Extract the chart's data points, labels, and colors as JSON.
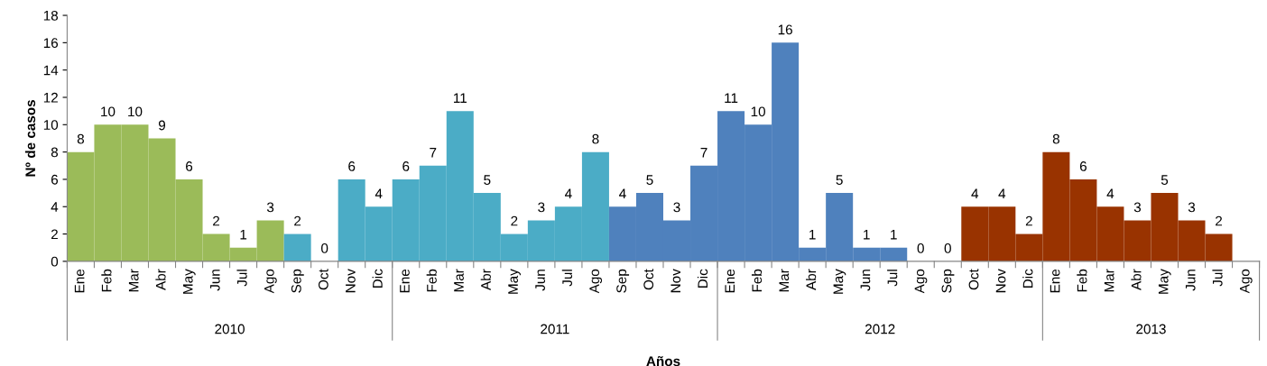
{
  "chart_data": {
    "type": "bar",
    "xlabel": "Años",
    "ylabel": "Nº de casos",
    "categories": [
      "Ene",
      "Feb",
      "Mar",
      "Abr",
      "May",
      "Jun",
      "Jul",
      "Ago",
      "Sep",
      "Oct",
      "Nov",
      "Dic",
      "Ene",
      "Feb",
      "Mar",
      "Abr",
      "May",
      "Jun",
      "Jul",
      "Ago",
      "Sep",
      "Oct",
      "Nov",
      "Dic",
      "Ene",
      "Feb",
      "Mar",
      "Abr",
      "May",
      "Jun",
      "Jul",
      "Ago",
      "Sep",
      "Oct",
      "Nov",
      "Dic",
      "Ene",
      "Feb",
      "Mar",
      "Abr",
      "May",
      "Jun",
      "Jul",
      "Ago"
    ],
    "values": [
      8,
      10,
      10,
      9,
      6,
      2,
      1,
      3,
      2,
      0,
      6,
      4,
      6,
      7,
      11,
      5,
      2,
      3,
      4,
      8,
      4,
      5,
      3,
      7,
      11,
      10,
      16,
      1,
      5,
      1,
      1,
      0,
      0,
      4,
      4,
      2,
      8,
      6,
      4,
      3,
      5,
      3,
      2,
      null
    ],
    "colors": [
      "#9bbb59",
      "#9bbb59",
      "#9bbb59",
      "#9bbb59",
      "#9bbb59",
      "#9bbb59",
      "#9bbb59",
      "#9bbb59",
      "#4bacc6",
      "#4bacc6",
      "#4bacc6",
      "#4bacc6",
      "#4bacc6",
      "#4bacc6",
      "#4bacc6",
      "#4bacc6",
      "#4bacc6",
      "#4bacc6",
      "#4bacc6",
      "#4bacc6",
      "#4f81bd",
      "#4f81bd",
      "#4f81bd",
      "#4f81bd",
      "#4f81bd",
      "#4f81bd",
      "#4f81bd",
      "#4f81bd",
      "#4f81bd",
      "#4f81bd",
      "#4f81bd",
      "#4f81bd",
      "#4f81bd",
      "#993300",
      "#993300",
      "#993300",
      "#993300",
      "#993300",
      "#993300",
      "#993300",
      "#993300",
      "#993300",
      "#993300",
      "#993300"
    ],
    "annotations": [
      "2010",
      "2011",
      "2012",
      "2013"
    ],
    "ylim": [
      0,
      18
    ],
    "yticks": [
      0,
      2,
      4,
      6,
      8,
      10,
      12,
      14,
      16,
      18
    ],
    "data_labels": true,
    "grid": false,
    "legend": false
  }
}
